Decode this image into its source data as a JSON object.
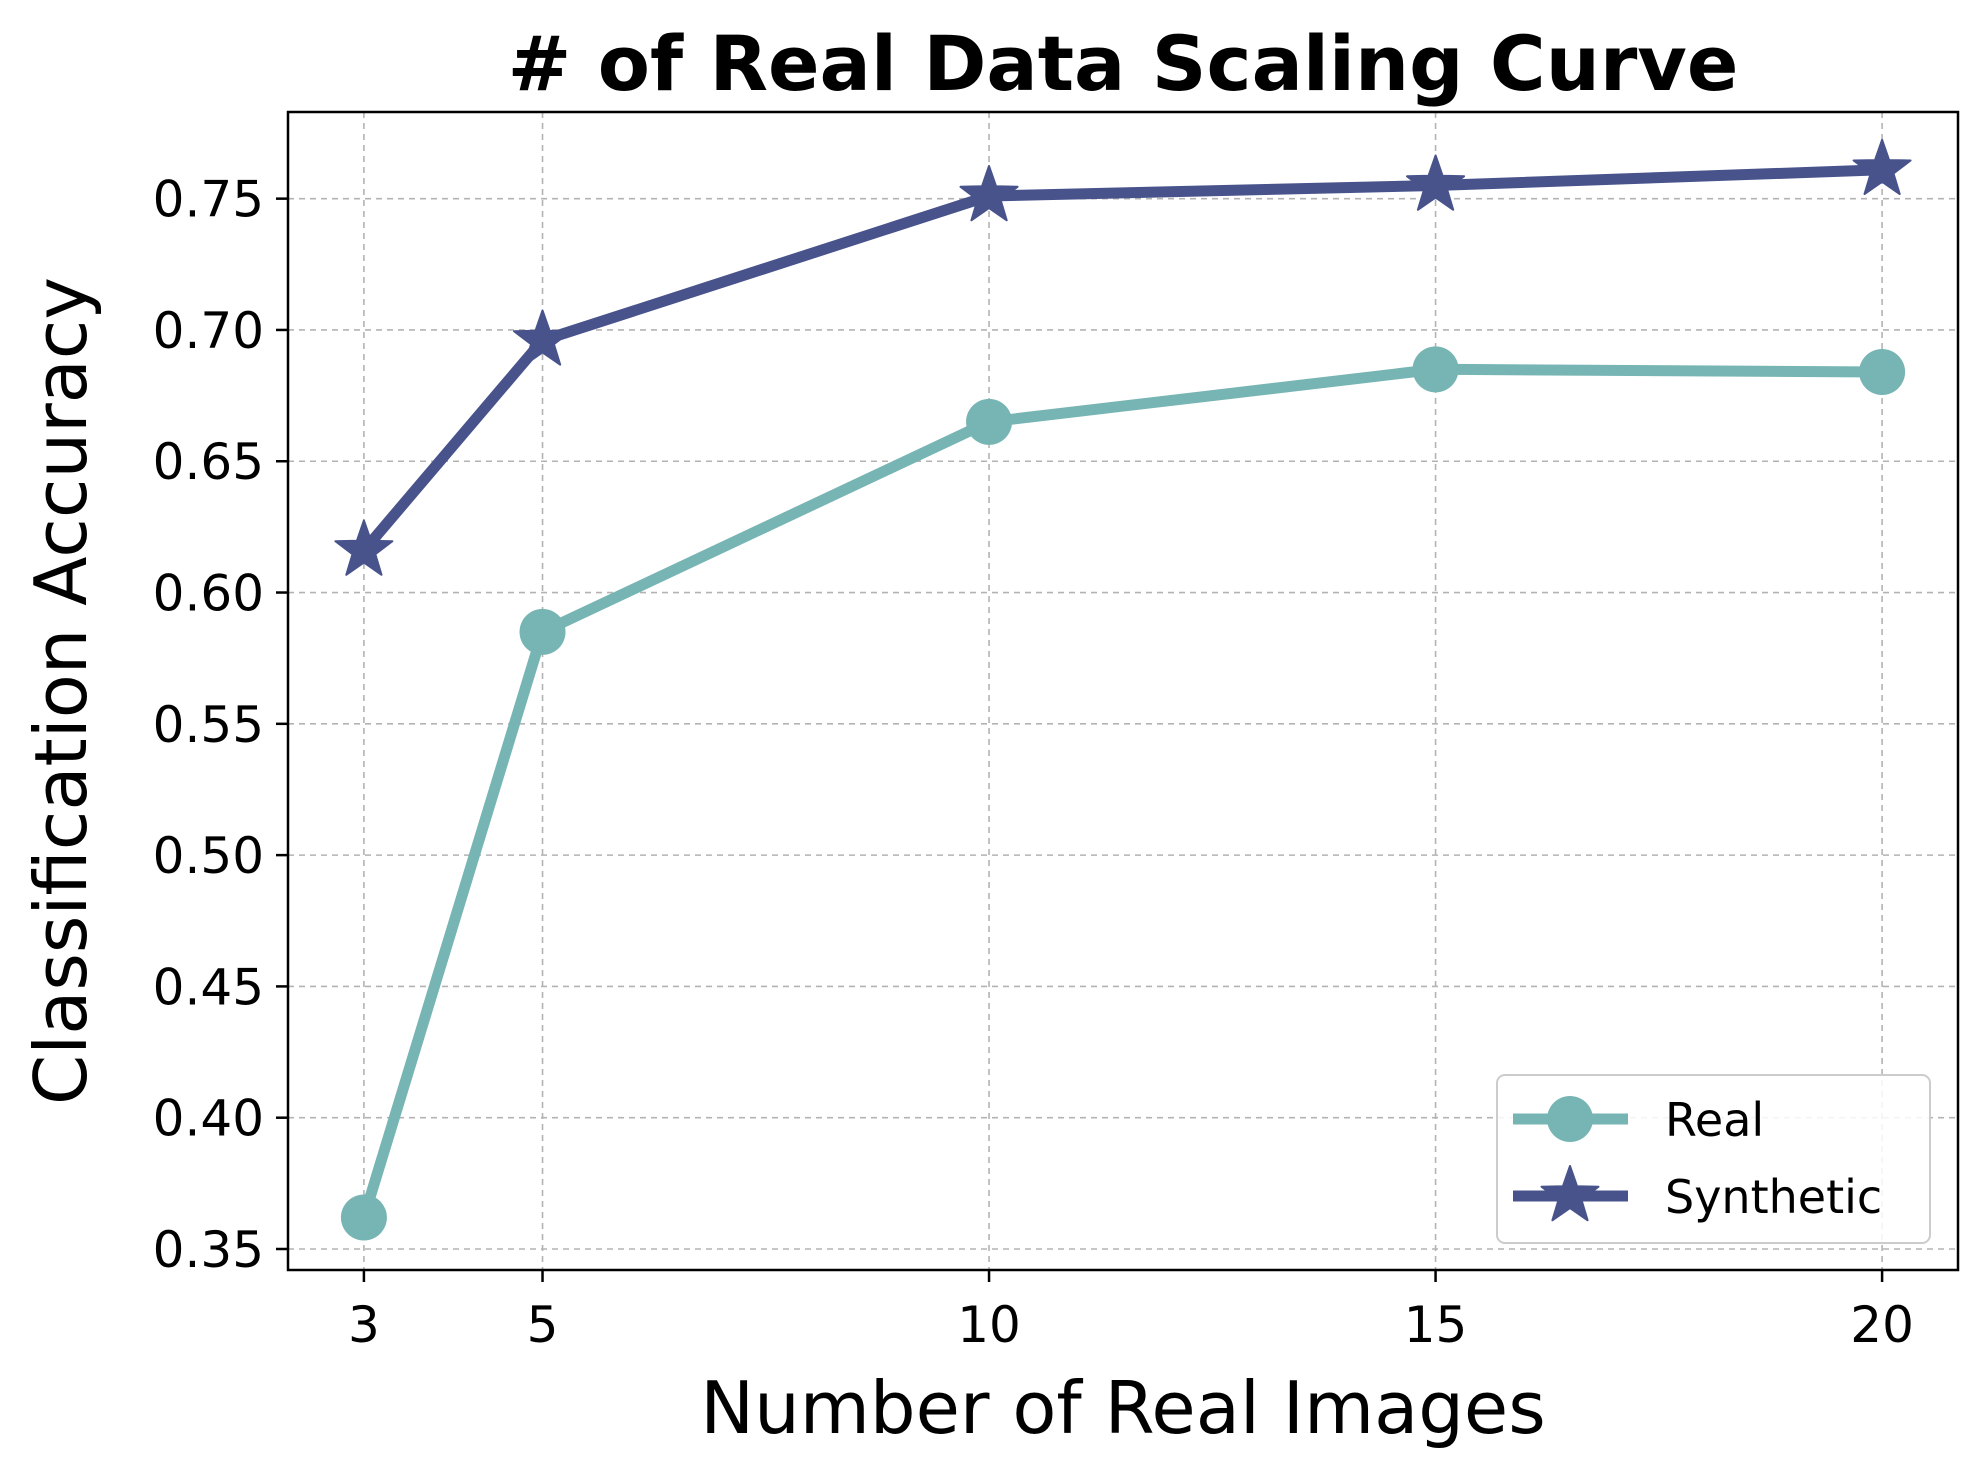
{
  "chart_data": {
    "type": "line",
    "title": "# of Real Data Scaling Curve",
    "xlabel": "Number of Real Images",
    "ylabel": "Classification Accuracy",
    "x": [
      3,
      5,
      10,
      15,
      20
    ],
    "x_ticks": [
      "3",
      "5",
      "10",
      "15",
      "20"
    ],
    "y_ticks": [
      "0.35",
      "0.40",
      "0.45",
      "0.50",
      "0.55",
      "0.60",
      "0.65",
      "0.70",
      "0.75"
    ],
    "xlim": [
      2.15,
      20.85
    ],
    "ylim": [
      0.342,
      0.783
    ],
    "grid": true,
    "legend_position": "lower-right",
    "series": [
      {
        "name": "Real",
        "values": [
          0.362,
          0.585,
          0.665,
          0.685,
          0.684
        ],
        "color": "#76b5b3",
        "marker": "circle"
      },
      {
        "name": "Synthetic",
        "values": [
          0.616,
          0.696,
          0.751,
          0.755,
          0.761
        ],
        "color": "#48538c",
        "marker": "star"
      }
    ]
  }
}
